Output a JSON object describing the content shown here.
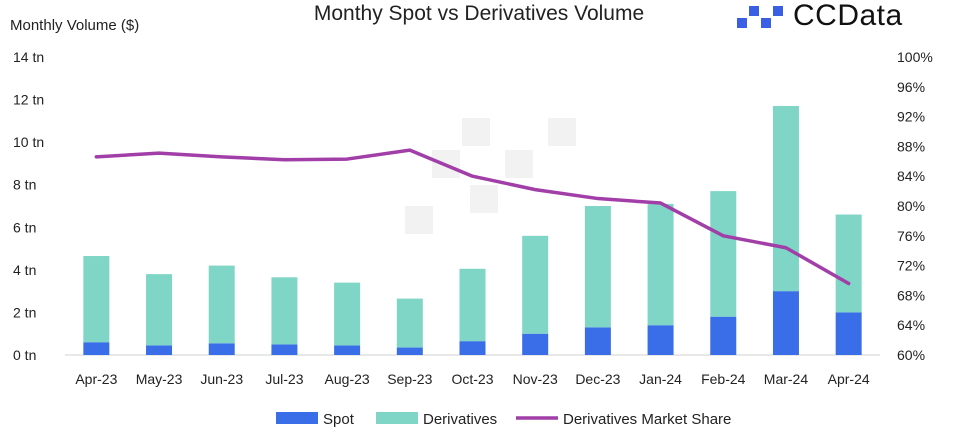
{
  "brand": {
    "logo_text": "CCData",
    "accent": "#3a5fe5"
  },
  "chart_data": {
    "type": "bar",
    "stacked": true,
    "title": "Monthy Spot vs Derivatives Volume",
    "ylabel": "Monthly Volume ($)",
    "y_ticks": [
      "0 tn",
      "2 tn",
      "4 tn",
      "6 tn",
      "8 tn",
      "10 tn",
      "12 tn",
      "14 tn"
    ],
    "ylim": [
      0,
      14
    ],
    "y2_ticks": [
      "60%",
      "64%",
      "68%",
      "72%",
      "76%",
      "80%",
      "84%",
      "88%",
      "92%",
      "96%",
      "100%"
    ],
    "y2lim": [
      60,
      100
    ],
    "categories": [
      "Apr-23",
      "May-23",
      "Jun-23",
      "Jul-23",
      "Aug-23",
      "Sep-23",
      "Oct-23",
      "Nov-23",
      "Dec-23",
      "Jan-24",
      "Feb-24",
      "Mar-24",
      "Apr-24"
    ],
    "series": [
      {
        "name": "Spot",
        "kind": "bar",
        "color": "#3a6ee8",
        "values": [
          0.6,
          0.45,
          0.55,
          0.5,
          0.45,
          0.35,
          0.65,
          1.0,
          1.3,
          1.4,
          1.8,
          3.0,
          2.0
        ]
      },
      {
        "name": "Derivatives",
        "kind": "bar",
        "color": "#7fd6c6",
        "values": [
          4.05,
          3.35,
          3.65,
          3.15,
          2.95,
          2.3,
          3.4,
          4.6,
          5.7,
          5.7,
          5.9,
          8.7,
          4.6
        ]
      },
      {
        "name": "Derivatives Market Share",
        "kind": "line",
        "axis": "right",
        "color": "#a13ea8",
        "values": [
          86.6,
          87.1,
          86.6,
          86.2,
          86.3,
          87.5,
          84.0,
          82.2,
          81.0,
          80.4,
          76.0,
          74.4,
          69.6
        ]
      }
    ],
    "legend_position": "bottom",
    "grid": false
  }
}
